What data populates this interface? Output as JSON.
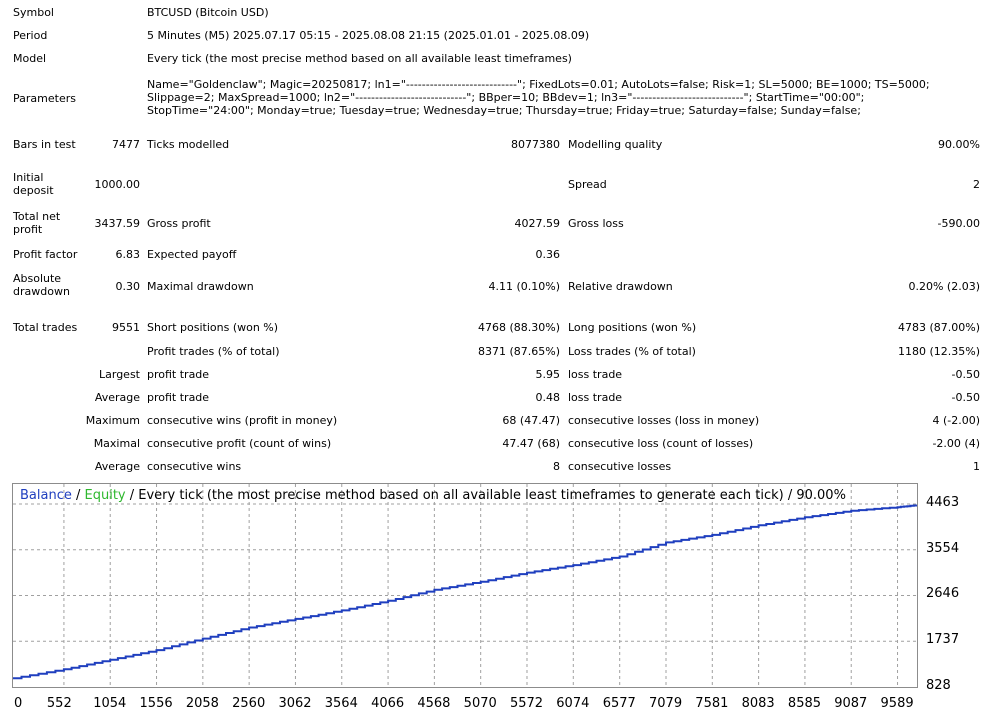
{
  "report": {
    "symbol": {
      "label": "Symbol",
      "value": "BTCUSD (Bitcoin USD)"
    },
    "period": {
      "label": "Period",
      "value": "5 Minutes (M5) 2025.07.17 05:15 - 2025.08.08 21:15 (2025.01.01 - 2025.08.09)"
    },
    "model": {
      "label": "Model",
      "value": "Every tick (the most precise method based on all available least timeframes)"
    },
    "parameters": {
      "label": "Parameters",
      "value": "Name=\"Goldenclaw\"; Magic=20250817; ln1=\"----------------------------\"; FixedLots=0.01; AutoLots=false; Risk=1; SL=5000; BE=1000; TS=5000;\nSlippage=2; MaxSpread=1000; ln2=\"----------------------------\"; BBper=10; BBdev=1; ln3=\"----------------------------\"; StartTime=\"00:00\";\nStopTime=\"24:00\"; Monday=true; Tuesday=true; Wednesday=true; Thursday=true; Friday=true; Saturday=false; Sunday=false;"
    },
    "bars_in_test": {
      "label": "Bars in test",
      "value": "7477"
    },
    "ticks_modelled": {
      "label": "Ticks modelled",
      "value": "8077380"
    },
    "modelling_quality": {
      "label": "Modelling quality",
      "value": "90.00%"
    },
    "initial_deposit": {
      "label": "Initial deposit",
      "value": "1000.00"
    },
    "spread": {
      "label": "Spread",
      "value": "2"
    },
    "total_net_profit": {
      "label": "Total net profit",
      "value": "3437.59"
    },
    "gross_profit": {
      "label": "Gross profit",
      "value": "4027.59"
    },
    "gross_loss": {
      "label": "Gross loss",
      "value": "-590.00"
    },
    "profit_factor": {
      "label": "Profit factor",
      "value": "6.83"
    },
    "expected_payoff": {
      "label": "Expected payoff",
      "value": "0.36"
    },
    "absolute_drawdown": {
      "label": "Absolute drawdown",
      "value": "0.30"
    },
    "maximal_drawdown": {
      "label": "Maximal drawdown",
      "value": "4.11 (0.10%)"
    },
    "relative_drawdown": {
      "label": "Relative drawdown",
      "value": "0.20% (2.03)"
    },
    "total_trades": {
      "label": "Total trades",
      "value": "9551"
    },
    "short_positions": {
      "label": "Short positions (won %)",
      "value": "4768 (88.30%)"
    },
    "long_positions": {
      "label": "Long positions (won %)",
      "value": "4783 (87.00%)"
    },
    "profit_trades": {
      "label": "Profit trades (% of total)",
      "value": "8371 (87.65%)"
    },
    "loss_trades": {
      "label": "Loss trades (% of total)",
      "value": "1180 (12.35%)"
    },
    "largest": {
      "label": "Largest",
      "profit_label": "profit trade",
      "profit_value": "5.95",
      "loss_label": "loss trade",
      "loss_value": "-0.50"
    },
    "average": {
      "label": "Average",
      "profit_label": "profit trade",
      "profit_value": "0.48",
      "loss_label": "loss trade",
      "loss_value": "-0.50"
    },
    "maximum": {
      "label": "Maximum",
      "wins_label": "consecutive wins (profit in money)",
      "wins_value": "68 (47.47)",
      "losses_label": "consecutive losses (loss in money)",
      "losses_value": "4 (-2.00)"
    },
    "maximal": {
      "label": "Maximal",
      "profit_label": "consecutive profit (count of wins)",
      "profit_value": "47.47 (68)",
      "loss_label": "consecutive loss (count of losses)",
      "loss_value": "-2.00 (4)"
    },
    "average_consecutive": {
      "label": "Average",
      "wins_label": "consecutive wins",
      "wins_value": "8",
      "losses_label": "consecutive losses",
      "losses_value": "1"
    }
  },
  "chart_title": {
    "balance": "Balance",
    "sep1": " / ",
    "equity": "Equity",
    "rest": " / Every tick (the most precise method based on all available least timeframes to generate each tick) / 90.00%"
  },
  "colors": {
    "balance": "#1f3fbf",
    "equity": "#2fb82f",
    "grid": "#a0a0a0"
  },
  "chart_data": {
    "type": "line",
    "x_ticks": [
      "0",
      "552",
      "1054",
      "1556",
      "2058",
      "2560",
      "3062",
      "3564",
      "4066",
      "4568",
      "5070",
      "5572",
      "6074",
      "6577",
      "7079",
      "7581",
      "8083",
      "8585",
      "9087",
      "9589"
    ],
    "y_ticks": [
      "4463",
      "3554",
      "2646",
      "1737",
      "828"
    ],
    "xlim": [
      0,
      9800
    ],
    "ylim": [
      828,
      4463
    ],
    "series": [
      {
        "name": "Balance",
        "x": [
          0,
          552,
          1054,
          1556,
          2058,
          2560,
          3062,
          3564,
          4066,
          4568,
          5070,
          5572,
          6074,
          6577,
          7079,
          7581,
          8083,
          8585,
          9087,
          9589,
          9800
        ],
        "y": [
          1000,
          1180,
          1370,
          1560,
          1790,
          2010,
          2180,
          2350,
          2540,
          2760,
          2920,
          3100,
          3250,
          3420,
          3700,
          3850,
          4040,
          4200,
          4330,
          4400,
          4440
        ]
      }
    ]
  }
}
